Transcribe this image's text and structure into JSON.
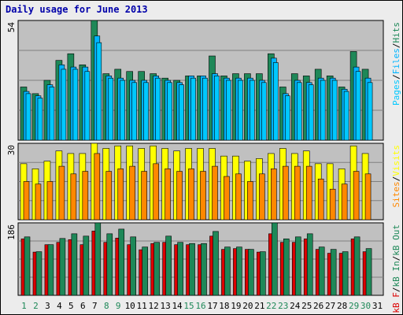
{
  "title": "Daily usage for June 2013",
  "colors": {
    "hits": "#1e8858",
    "files": "#00b4ff",
    "pages": "#00c8ff",
    "visits": "#ffff00",
    "sites": "#ff8800",
    "kb_in": "#1e8858",
    "kb_out": "#1e8858",
    "kb_f": "#dd0000",
    "weekday_label": "#000000",
    "weekend_label": "#1e8858",
    "slash": "#000000",
    "panel_bg": "#c0c0c0"
  },
  "chart_data": [
    {
      "type": "bar",
      "panel": "hits-files-pages",
      "max_label": "54",
      "label_parts": [
        {
          "text": "Pages",
          "key": "pages"
        },
        {
          "text": "/",
          "key": "slash"
        },
        {
          "text": "Files",
          "key": "files"
        },
        {
          "text": "/",
          "key": "slash"
        },
        {
          "text": "Hits",
          "key": "hits"
        }
      ],
      "ylim": [
        0,
        54
      ],
      "categories": [
        "1",
        "2",
        "3",
        "4",
        "5",
        "6",
        "7",
        "8",
        "9",
        "10",
        "11",
        "12",
        "13",
        "14",
        "15",
        "16",
        "17",
        "18",
        "19",
        "20",
        "21",
        "22",
        "23",
        "24",
        "25",
        "26",
        "27",
        "28",
        "29",
        "30",
        "31"
      ],
      "series": [
        {
          "name": "Hits",
          "key": "hits",
          "values": [
            24,
            21,
            27,
            36,
            39,
            34,
            54,
            30,
            32,
            31,
            31,
            30,
            28,
            27,
            29,
            29,
            38,
            29,
            30,
            30,
            30,
            39,
            24,
            30,
            29,
            32,
            29,
            24,
            40,
            32,
            0
          ]
        },
        {
          "name": "Files",
          "key": "files",
          "values": [
            22,
            20,
            25,
            34,
            33,
            33,
            47,
            29,
            28,
            27,
            27,
            29,
            27,
            26,
            29,
            29,
            30,
            28,
            28,
            28,
            27,
            37,
            21,
            27,
            26,
            28,
            28,
            23,
            33,
            28,
            0
          ]
        },
        {
          "name": "Pages",
          "key": "pages",
          "values": [
            21,
            19,
            24,
            32,
            32,
            31,
            44,
            28,
            27,
            26,
            26,
            28,
            26,
            25,
            28,
            28,
            29,
            27,
            27,
            27,
            26,
            35,
            20,
            26,
            25,
            27,
            27,
            22,
            31,
            26,
            0
          ]
        }
      ]
    },
    {
      "type": "bar",
      "panel": "visits-sites",
      "max_label": "30",
      "label_parts": [
        {
          "text": "Sites",
          "key": "sites"
        },
        {
          "text": "/",
          "key": "slash"
        },
        {
          "text": "Visits",
          "key": "visits"
        }
      ],
      "ylim": [
        0,
        30
      ],
      "categories": [
        "1",
        "2",
        "3",
        "4",
        "5",
        "6",
        "7",
        "8",
        "9",
        "10",
        "11",
        "12",
        "13",
        "14",
        "15",
        "16",
        "17",
        "18",
        "19",
        "20",
        "21",
        "22",
        "23",
        "24",
        "25",
        "26",
        "27",
        "28",
        "29",
        "30",
        "31"
      ],
      "series": [
        {
          "name": "Visits",
          "key": "visits",
          "values": [
            22,
            20,
            23,
            27,
            26,
            26,
            30,
            28,
            29,
            29,
            28,
            29,
            28,
            27,
            28,
            28,
            28,
            25,
            25,
            23,
            24,
            26,
            28,
            26,
            27,
            22,
            22,
            20,
            29,
            26,
            0
          ]
        },
        {
          "name": "Sites",
          "key": "sites",
          "values": [
            15,
            14,
            15,
            21,
            18,
            19,
            26,
            19,
            20,
            21,
            19,
            22,
            20,
            19,
            20,
            19,
            21,
            17,
            18,
            15,
            18,
            20,
            21,
            21,
            21,
            16,
            12,
            14,
            19,
            18,
            0
          ]
        }
      ]
    },
    {
      "type": "bar",
      "panel": "kb",
      "max_label": "186",
      "label_parts": [
        {
          "text": "kB F",
          "key": "kb_f"
        },
        {
          "text": "/",
          "key": "slash"
        },
        {
          "text": "kB In",
          "key": "kb_in"
        },
        {
          "text": "/",
          "key": "slash"
        },
        {
          "text": "kB Out",
          "key": "kb_out"
        }
      ],
      "ylim": [
        0,
        186
      ],
      "categories": [
        "1",
        "2",
        "3",
        "4",
        "5",
        "6",
        "7",
        "8",
        "9",
        "10",
        "11",
        "12",
        "13",
        "14",
        "15",
        "16",
        "17",
        "18",
        "19",
        "20",
        "21",
        "22",
        "23",
        "24",
        "25",
        "26",
        "27",
        "28",
        "29",
        "30",
        "31"
      ],
      "series": [
        {
          "name": "kB F",
          "key": "kb_f",
          "values": [
            145,
            111,
            130,
            136,
            143,
            130,
            165,
            136,
            147,
            130,
            117,
            133,
            136,
            130,
            130,
            130,
            152,
            118,
            120,
            118,
            111,
            158,
            136,
            136,
            145,
            118,
            108,
            108,
            145,
            112,
            0
          ]
        },
        {
          "name": "kB Out",
          "key": "kb_out",
          "values": [
            150,
            112,
            130,
            146,
            158,
            152,
            186,
            158,
            170,
            150,
            124,
            136,
            152,
            136,
            133,
            133,
            164,
            124,
            124,
            118,
            112,
            186,
            145,
            150,
            158,
            124,
            118,
            112,
            150,
            120,
            0
          ]
        }
      ]
    }
  ]
}
